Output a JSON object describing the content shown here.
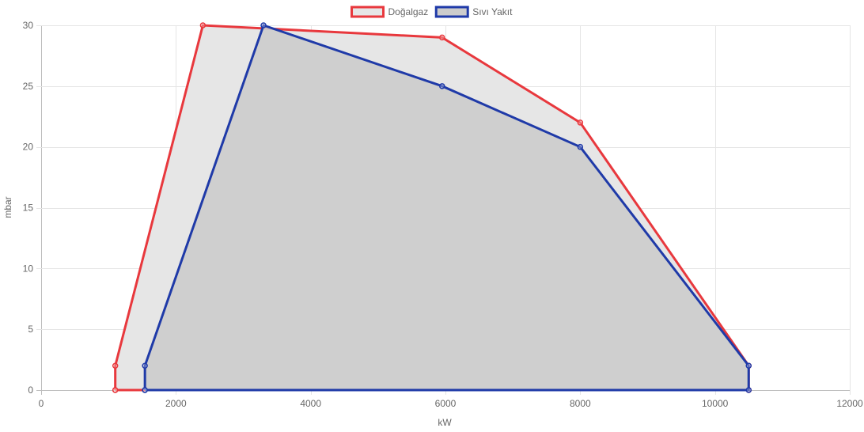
{
  "chart_data": {
    "type": "line",
    "title": "",
    "xlabel": "kW",
    "ylabel": "mbar",
    "xlim": [
      0,
      12000
    ],
    "ylim": [
      0,
      30
    ],
    "x_ticks": [
      0,
      2000,
      4000,
      6000,
      8000,
      10000,
      12000
    ],
    "y_ticks": [
      0,
      5,
      10,
      15,
      20,
      25,
      30
    ],
    "grid": true,
    "legend_position": "top",
    "series": [
      {
        "name": "Doğalgaz",
        "border_color": "#e8383d",
        "fill_color": "#e6e6e6",
        "points": [
          {
            "x": 1100,
            "y": 0
          },
          {
            "x": 1100,
            "y": 2
          },
          {
            "x": 2400,
            "y": 30
          },
          {
            "x": 5950,
            "y": 29
          },
          {
            "x": 8000,
            "y": 22
          },
          {
            "x": 10500,
            "y": 2
          },
          {
            "x": 10500,
            "y": 0
          },
          {
            "x": 1100,
            "y": 0
          }
        ]
      },
      {
        "name": "Sıvı Yakıt",
        "border_color": "#1f3aa8",
        "fill_color": "#cccccc",
        "points": [
          {
            "x": 1540,
            "y": 0
          },
          {
            "x": 1540,
            "y": 2
          },
          {
            "x": 3300,
            "y": 30
          },
          {
            "x": 5950,
            "y": 25
          },
          {
            "x": 8000,
            "y": 20
          },
          {
            "x": 10500,
            "y": 2
          },
          {
            "x": 10500,
            "y": 0
          },
          {
            "x": 1540,
            "y": 0
          }
        ]
      }
    ]
  }
}
